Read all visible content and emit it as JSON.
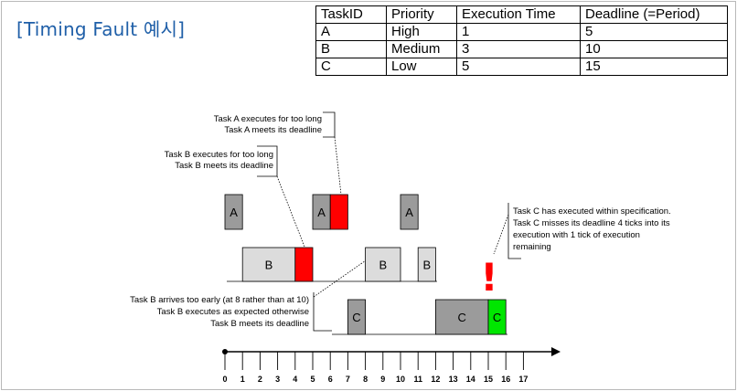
{
  "title": "[Timing Fault 예시]",
  "table": {
    "headers": [
      "TaskID",
      "Priority",
      "Execution Time",
      "Deadline (=Period)"
    ],
    "rows": [
      [
        "A",
        "High",
        "1",
        "5"
      ],
      [
        "B",
        "Medium",
        "3",
        "10"
      ],
      [
        "C",
        "Low",
        "5",
        "15"
      ]
    ]
  },
  "diagram": {
    "colors": {
      "light": "#dcdcdc",
      "dark": "#9b9b9b",
      "fault": "#ff0000",
      "ok": "#00e600",
      "alert": "#ff0000"
    },
    "blocks": [
      {
        "id": "a1",
        "label": "A",
        "start": 0,
        "end": 1,
        "row": "A",
        "color": "dark"
      },
      {
        "id": "a2",
        "label": "A",
        "start": 5,
        "end": 6,
        "row": "A",
        "color": "dark"
      },
      {
        "id": "a2-over",
        "label": "",
        "start": 6,
        "end": 7,
        "row": "A",
        "color": "fault"
      },
      {
        "id": "a3",
        "label": "A",
        "start": 10,
        "end": 11,
        "row": "A",
        "color": "dark"
      },
      {
        "id": "b1",
        "label": "B",
        "start": 1,
        "end": 4,
        "row": "B",
        "color": "light"
      },
      {
        "id": "b1-over",
        "label": "",
        "start": 4,
        "end": 5,
        "row": "B",
        "color": "fault"
      },
      {
        "id": "b2",
        "label": "B",
        "start": 8,
        "end": 10,
        "row": "B",
        "color": "light"
      },
      {
        "id": "b3",
        "label": "B",
        "start": 11,
        "end": 12,
        "row": "B",
        "color": "light"
      },
      {
        "id": "c1",
        "label": "C",
        "start": 7,
        "end": 8,
        "row": "C",
        "color": "dark"
      },
      {
        "id": "c2",
        "label": "C",
        "start": 12,
        "end": 15,
        "row": "C",
        "color": "dark"
      },
      {
        "id": "c3",
        "label": "C",
        "start": 15,
        "end": 16,
        "row": "C",
        "color": "ok"
      }
    ],
    "axis_ticks": [
      "0",
      "1",
      "2",
      "3",
      "4",
      "5",
      "6",
      "7",
      "8",
      "9",
      "10",
      "11",
      "12",
      "13",
      "14",
      "15",
      "16",
      "17"
    ],
    "alert_mark": "!",
    "callouts": {
      "task_a": [
        "Task A executes for too long",
        "Task A meets its deadline"
      ],
      "task_b": [
        "Task B executes for too long",
        "Task B meets its deadline"
      ],
      "task_b_early": [
        "Task B arrives too early (at 8 rather than at 10)",
        "Task B executes as expected otherwise",
        "Task B meets its deadline"
      ],
      "task_c": [
        "Task C has executed within specification.",
        "Task C misses its deadline 4 ticks into its",
        "execution with 1 tick of execution",
        "remaining"
      ]
    }
  }
}
